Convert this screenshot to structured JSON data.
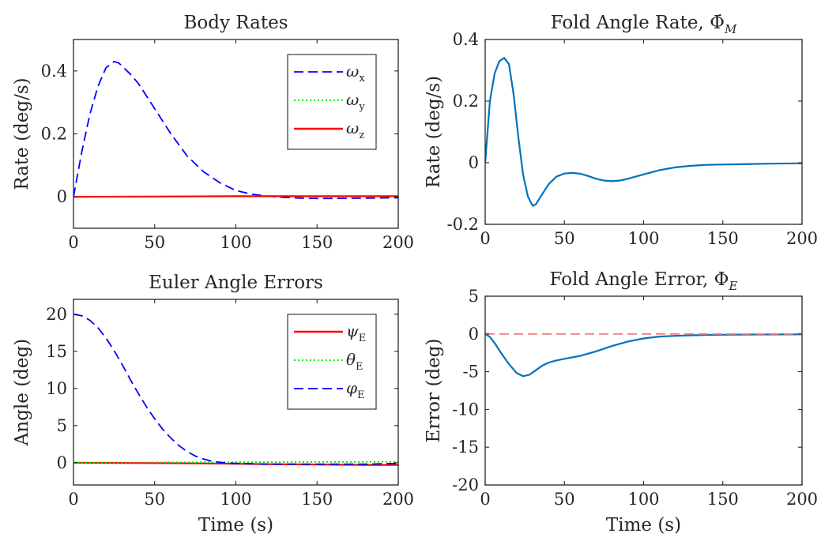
{
  "chart_data": [
    {
      "type": "line",
      "title": "Body Rates",
      "xlabel": "",
      "ylabel": "Rate (deg/s)",
      "xlim": [
        0,
        200
      ],
      "ylim": [
        -0.1,
        0.5
      ],
      "xticks": [
        0,
        50,
        100,
        150,
        200
      ],
      "yticks": [
        0,
        0.2,
        0.4
      ],
      "ytick_labels": [
        "0",
        "0.2",
        "0.4"
      ],
      "grid": false,
      "legend": "top-right",
      "series": [
        {
          "name": "ωx",
          "symbol": "ω",
          "sub": "x",
          "color": "#0000ff",
          "dash": "dashed",
          "x": [
            0,
            5,
            10,
            15,
            20,
            25,
            28,
            35,
            40,
            50,
            60,
            70,
            80,
            90,
            100,
            110,
            120,
            130,
            140,
            150,
            160,
            180,
            200
          ],
          "y": [
            0,
            0.14,
            0.26,
            0.35,
            0.41,
            0.43,
            0.425,
            0.39,
            0.36,
            0.28,
            0.2,
            0.13,
            0.08,
            0.045,
            0.02,
            0.008,
            0.002,
            -0.002,
            -0.004,
            -0.005,
            -0.005,
            -0.004,
            -0.003
          ]
        },
        {
          "name": "ωy",
          "symbol": "ω",
          "sub": "y",
          "color": "#00dd00",
          "dash": "dotted",
          "x": [
            0,
            50,
            100,
            150,
            200
          ],
          "y": [
            0,
            0,
            0.001,
            0.001,
            0.001
          ]
        },
        {
          "name": "ωz",
          "symbol": "ω",
          "sub": "z",
          "color": "#ff0000",
          "dash": "solid",
          "x": [
            0,
            50,
            100,
            150,
            200
          ],
          "y": [
            0,
            0.001,
            0.002,
            0.002,
            0.002
          ]
        }
      ]
    },
    {
      "type": "line",
      "title": "Fold Angle Rate, Φ̇M",
      "title_text": "Fold Angle Rate, ",
      "title_symbol": "Φ̇",
      "title_sub": "M",
      "xlabel": "",
      "ylabel": "Rate (deg/s)",
      "xlim": [
        0,
        200
      ],
      "ylim": [
        -0.2,
        0.4
      ],
      "xticks": [
        0,
        50,
        100,
        150,
        200
      ],
      "yticks": [
        -0.2,
        0,
        0.2,
        0.4
      ],
      "ytick_labels": [
        "-0.2",
        "0",
        "0.2",
        "0.4"
      ],
      "grid": false,
      "legend": "none",
      "series": [
        {
          "name": "",
          "color": "#0072bd",
          "dash": "solid",
          "x": [
            0,
            3,
            6,
            9,
            12,
            15,
            18,
            21,
            24,
            27,
            30,
            32,
            35,
            40,
            45,
            50,
            55,
            60,
            65,
            70,
            75,
            80,
            85,
            90,
            100,
            110,
            120,
            130,
            140,
            150,
            160,
            180,
            200
          ],
          "y": [
            0,
            0.2,
            0.29,
            0.33,
            0.34,
            0.32,
            0.22,
            0.08,
            -0.04,
            -0.11,
            -0.14,
            -0.135,
            -0.11,
            -0.07,
            -0.045,
            -0.035,
            -0.033,
            -0.036,
            -0.043,
            -0.052,
            -0.058,
            -0.06,
            -0.058,
            -0.052,
            -0.038,
            -0.024,
            -0.015,
            -0.01,
            -0.007,
            -0.006,
            -0.005,
            -0.003,
            -0.002
          ]
        }
      ]
    },
    {
      "type": "line",
      "title": "Euler Angle Errors",
      "xlabel": "Time (s)",
      "ylabel": "Angle (deg)",
      "xlim": [
        0,
        200
      ],
      "ylim": [
        -3,
        22
      ],
      "xticks": [
        0,
        50,
        100,
        150,
        200
      ],
      "yticks": [
        0,
        5,
        10,
        15,
        20
      ],
      "ytick_labels": [
        "0",
        "5",
        "10",
        "15",
        "20"
      ],
      "grid": false,
      "legend": "top-right",
      "series": [
        {
          "name": "ψE",
          "symbol": "ψ",
          "sub": "E",
          "color": "#ff0000",
          "dash": "solid",
          "x": [
            0,
            50,
            80,
            100,
            120,
            150,
            180,
            200
          ],
          "y": [
            0,
            -0.05,
            -0.1,
            -0.15,
            -0.2,
            -0.25,
            -0.3,
            -0.3
          ]
        },
        {
          "name": "θE",
          "symbol": "θ",
          "sub": "E",
          "color": "#00dd00",
          "dash": "dotted",
          "x": [
            0,
            50,
            100,
            150,
            200
          ],
          "y": [
            0,
            0.03,
            0.06,
            0.1,
            0.12
          ]
        },
        {
          "name": "φE",
          "symbol": "φ",
          "sub": "E",
          "color": "#0000ff",
          "dash": "dashed",
          "x": [
            0,
            5,
            10,
            15,
            20,
            25,
            30,
            35,
            40,
            45,
            50,
            55,
            60,
            65,
            70,
            75,
            80,
            85,
            90,
            95,
            100,
            110,
            120,
            130,
            140,
            150,
            160,
            170,
            180,
            190,
            200
          ],
          "y": [
            20,
            19.8,
            19.2,
            18.2,
            16.8,
            15.1,
            13.2,
            11.2,
            9.3,
            7.5,
            5.9,
            4.5,
            3.3,
            2.3,
            1.5,
            0.9,
            0.5,
            0.2,
            0.05,
            -0.05,
            -0.1,
            -0.15,
            -0.2,
            -0.2,
            -0.2,
            -0.2,
            -0.2,
            -0.2,
            -0.2,
            -0.15,
            -0.1
          ]
        }
      ]
    },
    {
      "type": "line",
      "title": "Fold Angle Error, ΦE",
      "title_text": "Fold Angle Error, ",
      "title_symbol": "Φ",
      "title_sub": "E",
      "xlabel": "Time (s)",
      "ylabel": "Error (deg)",
      "xlim": [
        0,
        200
      ],
      "ylim": [
        -20,
        5
      ],
      "xticks": [
        0,
        50,
        100,
        150,
        200
      ],
      "yticks": [
        -20,
        -15,
        -10,
        -5,
        0,
        5
      ],
      "ytick_labels": [
        "-20",
        "-15",
        "-10",
        "-5",
        "0",
        "5"
      ],
      "grid": false,
      "legend": "none",
      "series": [
        {
          "name": "",
          "color": "#0072bd",
          "dash": "solid",
          "x": [
            0,
            3,
            6,
            10,
            15,
            20,
            24,
            28,
            32,
            36,
            40,
            45,
            50,
            55,
            60,
            65,
            70,
            80,
            90,
            100,
            110,
            120,
            130,
            140,
            150,
            170,
            200
          ],
          "y": [
            0,
            -0.4,
            -1.2,
            -2.5,
            -4,
            -5.2,
            -5.6,
            -5.4,
            -4.8,
            -4.2,
            -3.8,
            -3.5,
            -3.3,
            -3.1,
            -2.9,
            -2.6,
            -2.3,
            -1.6,
            -1.0,
            -0.6,
            -0.35,
            -0.25,
            -0.18,
            -0.13,
            -0.1,
            -0.07,
            -0.05
          ]
        },
        {
          "name": "",
          "color": "#f08080",
          "dash": "dashed",
          "x": [
            0,
            200
          ],
          "y": [
            0,
            0
          ]
        }
      ]
    }
  ]
}
